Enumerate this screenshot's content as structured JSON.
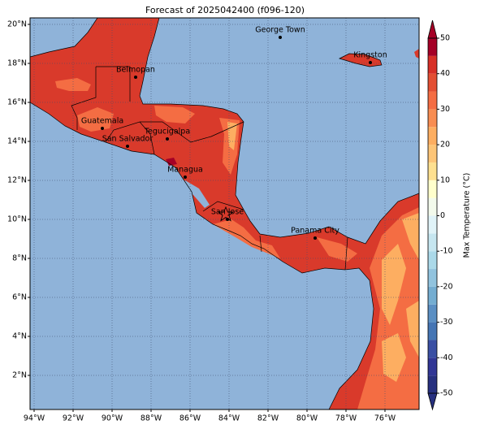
{
  "title": "Forecast of 2025042400 (f096-120)",
  "map": {
    "lon_ticks": [
      {
        "value": -94,
        "label": "94°W"
      },
      {
        "value": -92,
        "label": "92°W"
      },
      {
        "value": -90,
        "label": "90°W"
      },
      {
        "value": -88,
        "label": "88°W"
      },
      {
        "value": -86,
        "label": "86°W"
      },
      {
        "value": -84,
        "label": "84°W"
      },
      {
        "value": -82,
        "label": "82°W"
      },
      {
        "value": -80,
        "label": "80°W"
      },
      {
        "value": -78,
        "label": "78°W"
      },
      {
        "value": -76,
        "label": "76°W"
      }
    ],
    "lat_ticks": [
      {
        "value": 20,
        "label": "20°N"
      },
      {
        "value": 18,
        "label": "18°N"
      },
      {
        "value": 16,
        "label": "16°N"
      },
      {
        "value": 14,
        "label": "14°N"
      },
      {
        "value": 12,
        "label": "12°N"
      },
      {
        "value": 10,
        "label": "10°N"
      },
      {
        "value": 8,
        "label": "8°N"
      },
      {
        "value": 6,
        "label": "6°N"
      },
      {
        "value": 4,
        "label": "4°N"
      },
      {
        "value": 2,
        "label": "2°N"
      }
    ],
    "cities": [
      "George Town",
      "Kingston",
      "Belmopan",
      "Guatemala",
      "Tegucigalpa",
      "San Salvador",
      "Managua",
      "San Jose",
      "Panama City"
    ]
  },
  "colorbar": {
    "label": "Max Temperature (°C)",
    "lim": [
      -50,
      50
    ],
    "ticks": [
      50,
      40,
      30,
      20,
      10,
      0,
      -10,
      -20,
      -30,
      -40,
      -50
    ],
    "levels": [
      -50,
      -45,
      -40,
      -35,
      -30,
      -25,
      -20,
      -15,
      -10,
      -5,
      0,
      5,
      10,
      15,
      20,
      25,
      30,
      35,
      40,
      45,
      50
    ],
    "colors": [
      "#27307f",
      "#313695",
      "#3a4fa3",
      "#4575b4",
      "#5b8fc3",
      "#74add1",
      "#91c3de",
      "#abd9e9",
      "#c6e6f0",
      "#e0f3f8",
      "#f3faec",
      "#ffffcc",
      "#fee090",
      "#fdc577",
      "#fdae61",
      "#f88d52",
      "#f46d43",
      "#e34f33",
      "#d73027",
      "#a50026"
    ]
  }
}
